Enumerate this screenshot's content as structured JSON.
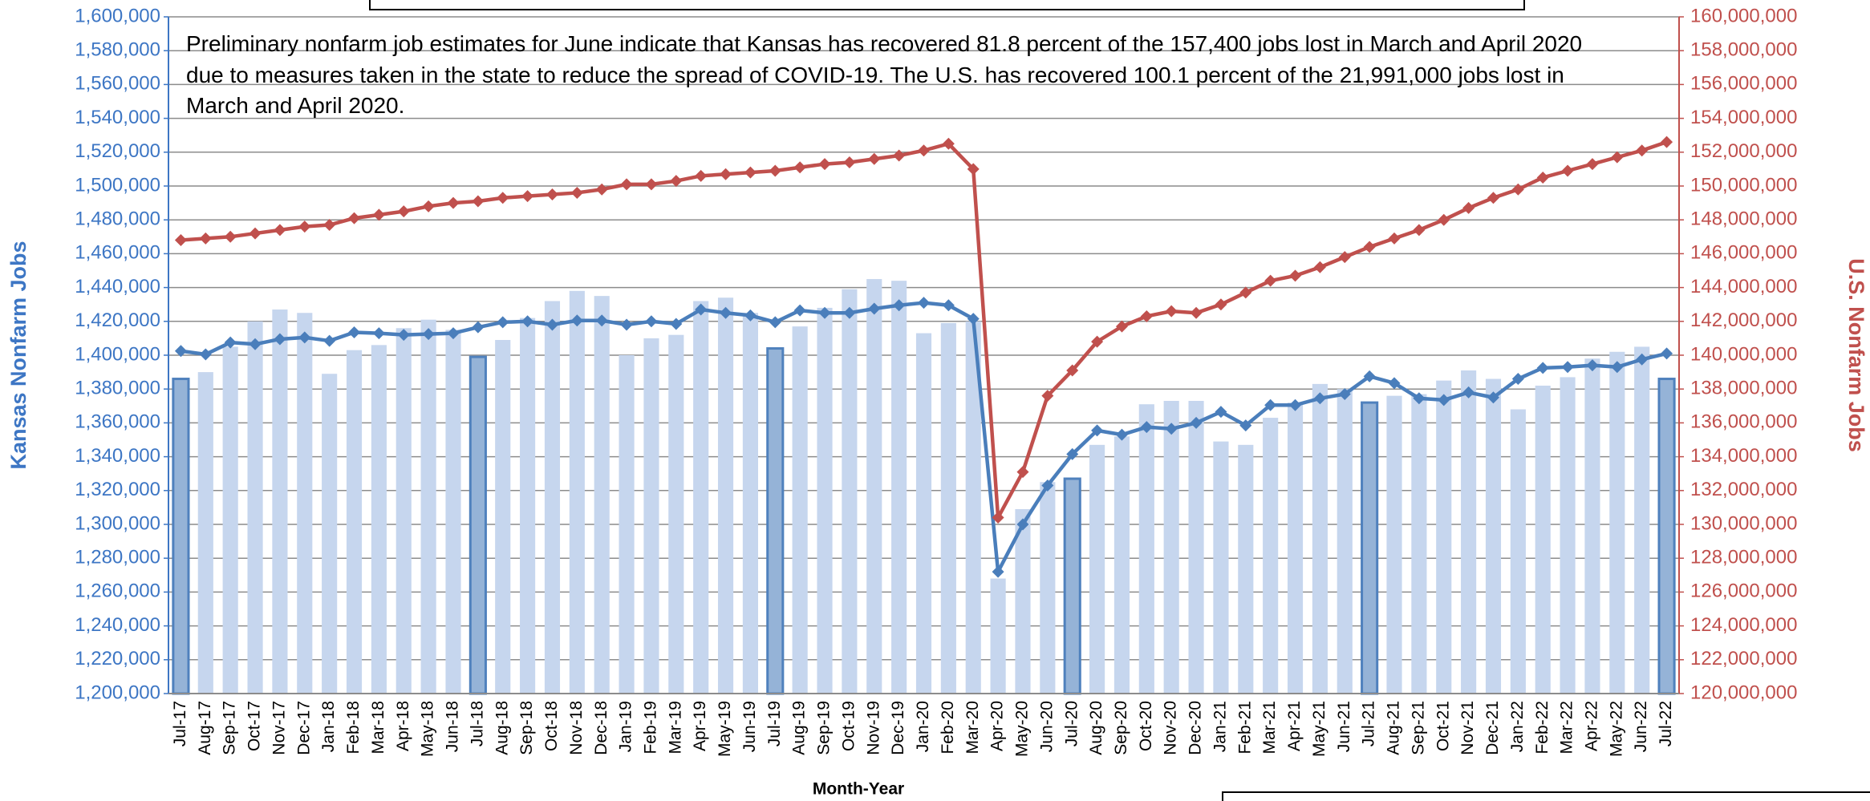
{
  "chart_data": {
    "type": "bar_line",
    "annotation": [
      "Preliminary nonfarm job estimates for June indicate that Kansas has recovered 81.8 percent of the 157,400 jobs lost in March and April 2020",
      "due to measures taken in the state to reduce the spread of COVID-19. The U.S. has recovered 100.1 percent of the 21,991,000 jobs lost in",
      "March and April 2020."
    ],
    "xlabel": "Month-Year",
    "ylabel": "Kansas Nonfarm Jobs",
    "y2label": "U.S. Nonfarm Jobs",
    "categories": [
      "Jul-17",
      "Aug-17",
      "Sep-17",
      "Oct-17",
      "Nov-17",
      "Dec-17",
      "Jan-18",
      "Feb-18",
      "Mar-18",
      "Apr-18",
      "May-18",
      "Jun-18",
      "Jul-18",
      "Aug-18",
      "Sep-18",
      "Oct-18",
      "Nov-18",
      "Dec-18",
      "Jan-19",
      "Feb-19",
      "Mar-19",
      "Apr-19",
      "May-19",
      "Jun-19",
      "Jul-19",
      "Aug-19",
      "Sep-19",
      "Oct-19",
      "Nov-19",
      "Dec-19",
      "Jan-20",
      "Feb-20",
      "Mar-20",
      "Apr-20",
      "May-20",
      "Jun-20",
      "Jul-20",
      "Aug-20",
      "Sep-20",
      "Oct-20",
      "Nov-20",
      "Dec-20",
      "Jan-21",
      "Feb-21",
      "Mar-21",
      "Apr-21",
      "May-21",
      "Jun-21",
      "Jul-21",
      "Aug-21",
      "Sep-21",
      "Oct-21",
      "Nov-21",
      "Dec-21",
      "Jan-22",
      "Feb-22",
      "Mar-22",
      "Apr-22",
      "May-22",
      "Jun-22",
      "Jul-22"
    ],
    "series": [
      {
        "kind": "bar",
        "axis": "y",
        "color": "#c6d6ee",
        "colors": [
          "#95b3d7",
          "#c6d6ee",
          "#c6d6ee",
          "#c6d6ee",
          "#c6d6ee",
          "#c6d6ee",
          "#c6d6ee",
          "#c6d6ee",
          "#c6d6ee",
          "#c6d6ee",
          "#c6d6ee",
          "#c6d6ee",
          "#95b3d7",
          "#c6d6ee",
          "#c6d6ee",
          "#c6d6ee",
          "#c6d6ee",
          "#c6d6ee",
          "#c6d6ee",
          "#c6d6ee",
          "#c6d6ee",
          "#c6d6ee",
          "#c6d6ee",
          "#c6d6ee",
          "#95b3d7",
          "#c6d6ee",
          "#c6d6ee",
          "#c6d6ee",
          "#c6d6ee",
          "#c6d6ee",
          "#c6d6ee",
          "#c6d6ee",
          "#c6d6ee",
          "#c6d6ee",
          "#c6d6ee",
          "#c6d6ee",
          "#95b3d7",
          "#c6d6ee",
          "#c6d6ee",
          "#c6d6ee",
          "#c6d6ee",
          "#c6d6ee",
          "#c6d6ee",
          "#c6d6ee",
          "#c6d6ee",
          "#c6d6ee",
          "#c6d6ee",
          "#c6d6ee",
          "#95b3d7",
          "#c6d6ee",
          "#c6d6ee",
          "#c6d6ee",
          "#c6d6ee",
          "#c6d6ee",
          "#c6d6ee",
          "#c6d6ee",
          "#c6d6ee",
          "#c6d6ee",
          "#c6d6ee",
          "#c6d6ee",
          "#95b3d7"
        ],
        "values": [
          1386000,
          1390000,
          1405000,
          1420000,
          1427000,
          1425000,
          1389000,
          1403000,
          1406000,
          1416000,
          1421000,
          1415000,
          1399000,
          1409000,
          1422000,
          1432000,
          1438000,
          1435000,
          1400000,
          1410000,
          1412000,
          1432000,
          1434000,
          1425000,
          1404000,
          1417000,
          1428000,
          1439000,
          1445000,
          1444000,
          1413000,
          1419000,
          1420000,
          1268000,
          1309000,
          1325000,
          1327000,
          1347000,
          1352000,
          1371000,
          1373000,
          1373000,
          1349000,
          1347000,
          1363000,
          1372000,
          1383000,
          1380000,
          1372000,
          1376000,
          1377000,
          1385000,
          1391000,
          1386000,
          1368000,
          1382000,
          1387000,
          1398000,
          1402000,
          1405000,
          1386000
        ]
      },
      {
        "kind": "line",
        "axis": "y",
        "color": "#4a7ebb",
        "values": [
          1402500,
          1400500,
          1407500,
          1406500,
          1409500,
          1410500,
          1408500,
          1413500,
          1413000,
          1412000,
          1412500,
          1413000,
          1416500,
          1419500,
          1420000,
          1418000,
          1420500,
          1420500,
          1418000,
          1420000,
          1418500,
          1427000,
          1425000,
          1423500,
          1419500,
          1426500,
          1425000,
          1425000,
          1427500,
          1429500,
          1431000,
          1429500,
          1421500,
          1272000,
          1300000,
          1323000,
          1341500,
          1355500,
          1353000,
          1357500,
          1356500,
          1360000,
          1366500,
          1358500,
          1370500,
          1370500,
          1374500,
          1377000,
          1387500,
          1383500,
          1374500,
          1373500,
          1378000,
          1375000,
          1386000,
          1392500,
          1393000,
          1394000,
          1393000,
          1397500,
          1401000
        ]
      },
      {
        "kind": "line",
        "axis": "y2",
        "color": "#c0504d",
        "values": [
          146800000,
          146900000,
          147000000,
          147200000,
          147400000,
          147600000,
          147700000,
          148100000,
          148300000,
          148500000,
          148800000,
          149000000,
          149100000,
          149300000,
          149400000,
          149500000,
          149600000,
          149800000,
          150100000,
          150100000,
          150300000,
          150600000,
          150700000,
          150800000,
          150900000,
          151100000,
          151300000,
          151400000,
          151600000,
          151800000,
          152100000,
          152500000,
          151000000,
          130400000,
          133100000,
          137600000,
          139100000,
          140800000,
          141700000,
          142300000,
          142600000,
          142500000,
          143000000,
          143700000,
          144400000,
          144700000,
          145200000,
          145800000,
          146400000,
          146900000,
          147400000,
          148000000,
          148700000,
          149300000,
          149800000,
          150500000,
          150900000,
          151300000,
          151700000,
          152100000,
          152600000
        ]
      }
    ],
    "ylim": [
      1200000,
      1600000
    ],
    "yticks": [
      {
        "value": 1200000,
        "label": "1,200,000"
      },
      {
        "value": 1220000,
        "label": "1,220,000"
      },
      {
        "value": 1240000,
        "label": "1,240,000"
      },
      {
        "value": 1260000,
        "label": "1,260,000"
      },
      {
        "value": 1280000,
        "label": "1,280,000"
      },
      {
        "value": 1300000,
        "label": "1,300,000"
      },
      {
        "value": 1320000,
        "label": "1,320,000"
      },
      {
        "value": 1340000,
        "label": "1,340,000"
      },
      {
        "value": 1360000,
        "label": "1,360,000"
      },
      {
        "value": 1380000,
        "label": "1,380,000"
      },
      {
        "value": 1400000,
        "label": "1,400,000"
      },
      {
        "value": 1420000,
        "label": "1,420,000"
      },
      {
        "value": 1440000,
        "label": "1,440,000"
      },
      {
        "value": 1460000,
        "label": "1,460,000"
      },
      {
        "value": 1480000,
        "label": "1,480,000"
      },
      {
        "value": 1500000,
        "label": "1,500,000"
      },
      {
        "value": 1520000,
        "label": "1,520,000"
      },
      {
        "value": 1540000,
        "label": "1,540,000"
      },
      {
        "value": 1560000,
        "label": "1,560,000"
      },
      {
        "value": 1580000,
        "label": "1,580,000"
      },
      {
        "value": 1600000,
        "label": "1,600,000"
      }
    ],
    "y2lim": [
      120000000,
      160000000
    ],
    "y2ticks": [
      {
        "value": 120000000,
        "label": "120,000,000"
      },
      {
        "value": 122000000,
        "label": "122,000,000"
      },
      {
        "value": 124000000,
        "label": "124,000,000"
      },
      {
        "value": 126000000,
        "label": "126,000,000"
      },
      {
        "value": 128000000,
        "label": "128,000,000"
      },
      {
        "value": 130000000,
        "label": "130,000,000"
      },
      {
        "value": 132000000,
        "label": "132,000,000"
      },
      {
        "value": 134000000,
        "label": "134,000,000"
      },
      {
        "value": 136000000,
        "label": "136,000,000"
      },
      {
        "value": 138000000,
        "label": "138,000,000"
      },
      {
        "value": 140000000,
        "label": "140,000,000"
      },
      {
        "value": 142000000,
        "label": "142,000,000"
      },
      {
        "value": 144000000,
        "label": "144,000,000"
      },
      {
        "value": 146000000,
        "label": "146,000,000"
      },
      {
        "value": 148000000,
        "label": "148,000,000"
      },
      {
        "value": 150000000,
        "label": "150,000,000"
      },
      {
        "value": 152000000,
        "label": "152,000,000"
      },
      {
        "value": 154000000,
        "label": "154,000,000"
      },
      {
        "value": 156000000,
        "label": "156,000,000"
      },
      {
        "value": 158000000,
        "label": "158,000,000"
      },
      {
        "value": 160000000,
        "label": "160,000,000"
      }
    ],
    "grid": true,
    "ycolor": "#3d76c4",
    "y2color": "#c0504d"
  }
}
